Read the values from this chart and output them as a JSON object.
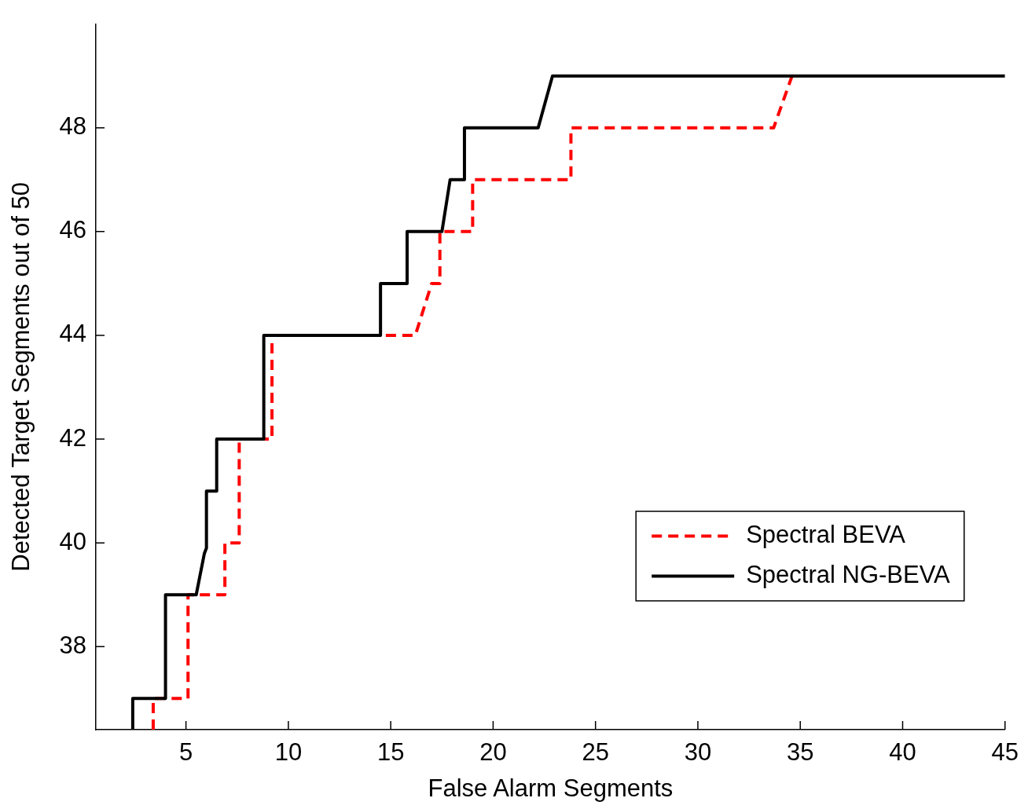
{
  "chart_data": {
    "type": "line",
    "xlabel": "False Alarm Segments",
    "ylabel": "Detected Target Segments out of 50",
    "xlim": [
      0.6,
      45
    ],
    "ylim": [
      36.4,
      50
    ],
    "xticks": [
      5,
      10,
      15,
      20,
      25,
      30,
      35,
      40,
      45
    ],
    "yticks": [
      38,
      40,
      42,
      44,
      46,
      48
    ],
    "grid": false,
    "legend": "bottom right",
    "marker": "none",
    "series": [
      {
        "name": "Spectral BEVA",
        "color": "#ff0000",
        "line_style": "dashed",
        "x": [
          3.4,
          3.4,
          5.1,
          5.1,
          6.9,
          6.9,
          7.6,
          7.6,
          9.2,
          9.2,
          16.2,
          17.0,
          17.4,
          17.4,
          19.0,
          19.0,
          23.8,
          23.8,
          33.7,
          34.6
        ],
        "values": [
          36.4,
          37,
          37,
          39,
          39,
          40,
          40,
          42,
          42,
          44,
          44,
          45,
          45,
          46,
          46,
          47,
          47,
          48,
          48,
          49
        ]
      },
      {
        "name": "Spectral NG-BEVA",
        "color": "#000000",
        "line_style": "solid",
        "x": [
          2.4,
          2.4,
          4.0,
          4.0,
          5.5,
          5.9,
          6.0,
          6.0,
          6.5,
          6.5,
          8.8,
          8.8,
          14.5,
          14.5,
          15.8,
          15.8,
          17.5,
          17.9,
          18.6,
          18.6,
          22.2,
          22.9,
          45
        ],
        "values": [
          36.4,
          37,
          37,
          39,
          39,
          39.8,
          39.9,
          41,
          41,
          42,
          42,
          44,
          44,
          45,
          45,
          46,
          46,
          47,
          47,
          48,
          48,
          49,
          49
        ]
      }
    ]
  }
}
